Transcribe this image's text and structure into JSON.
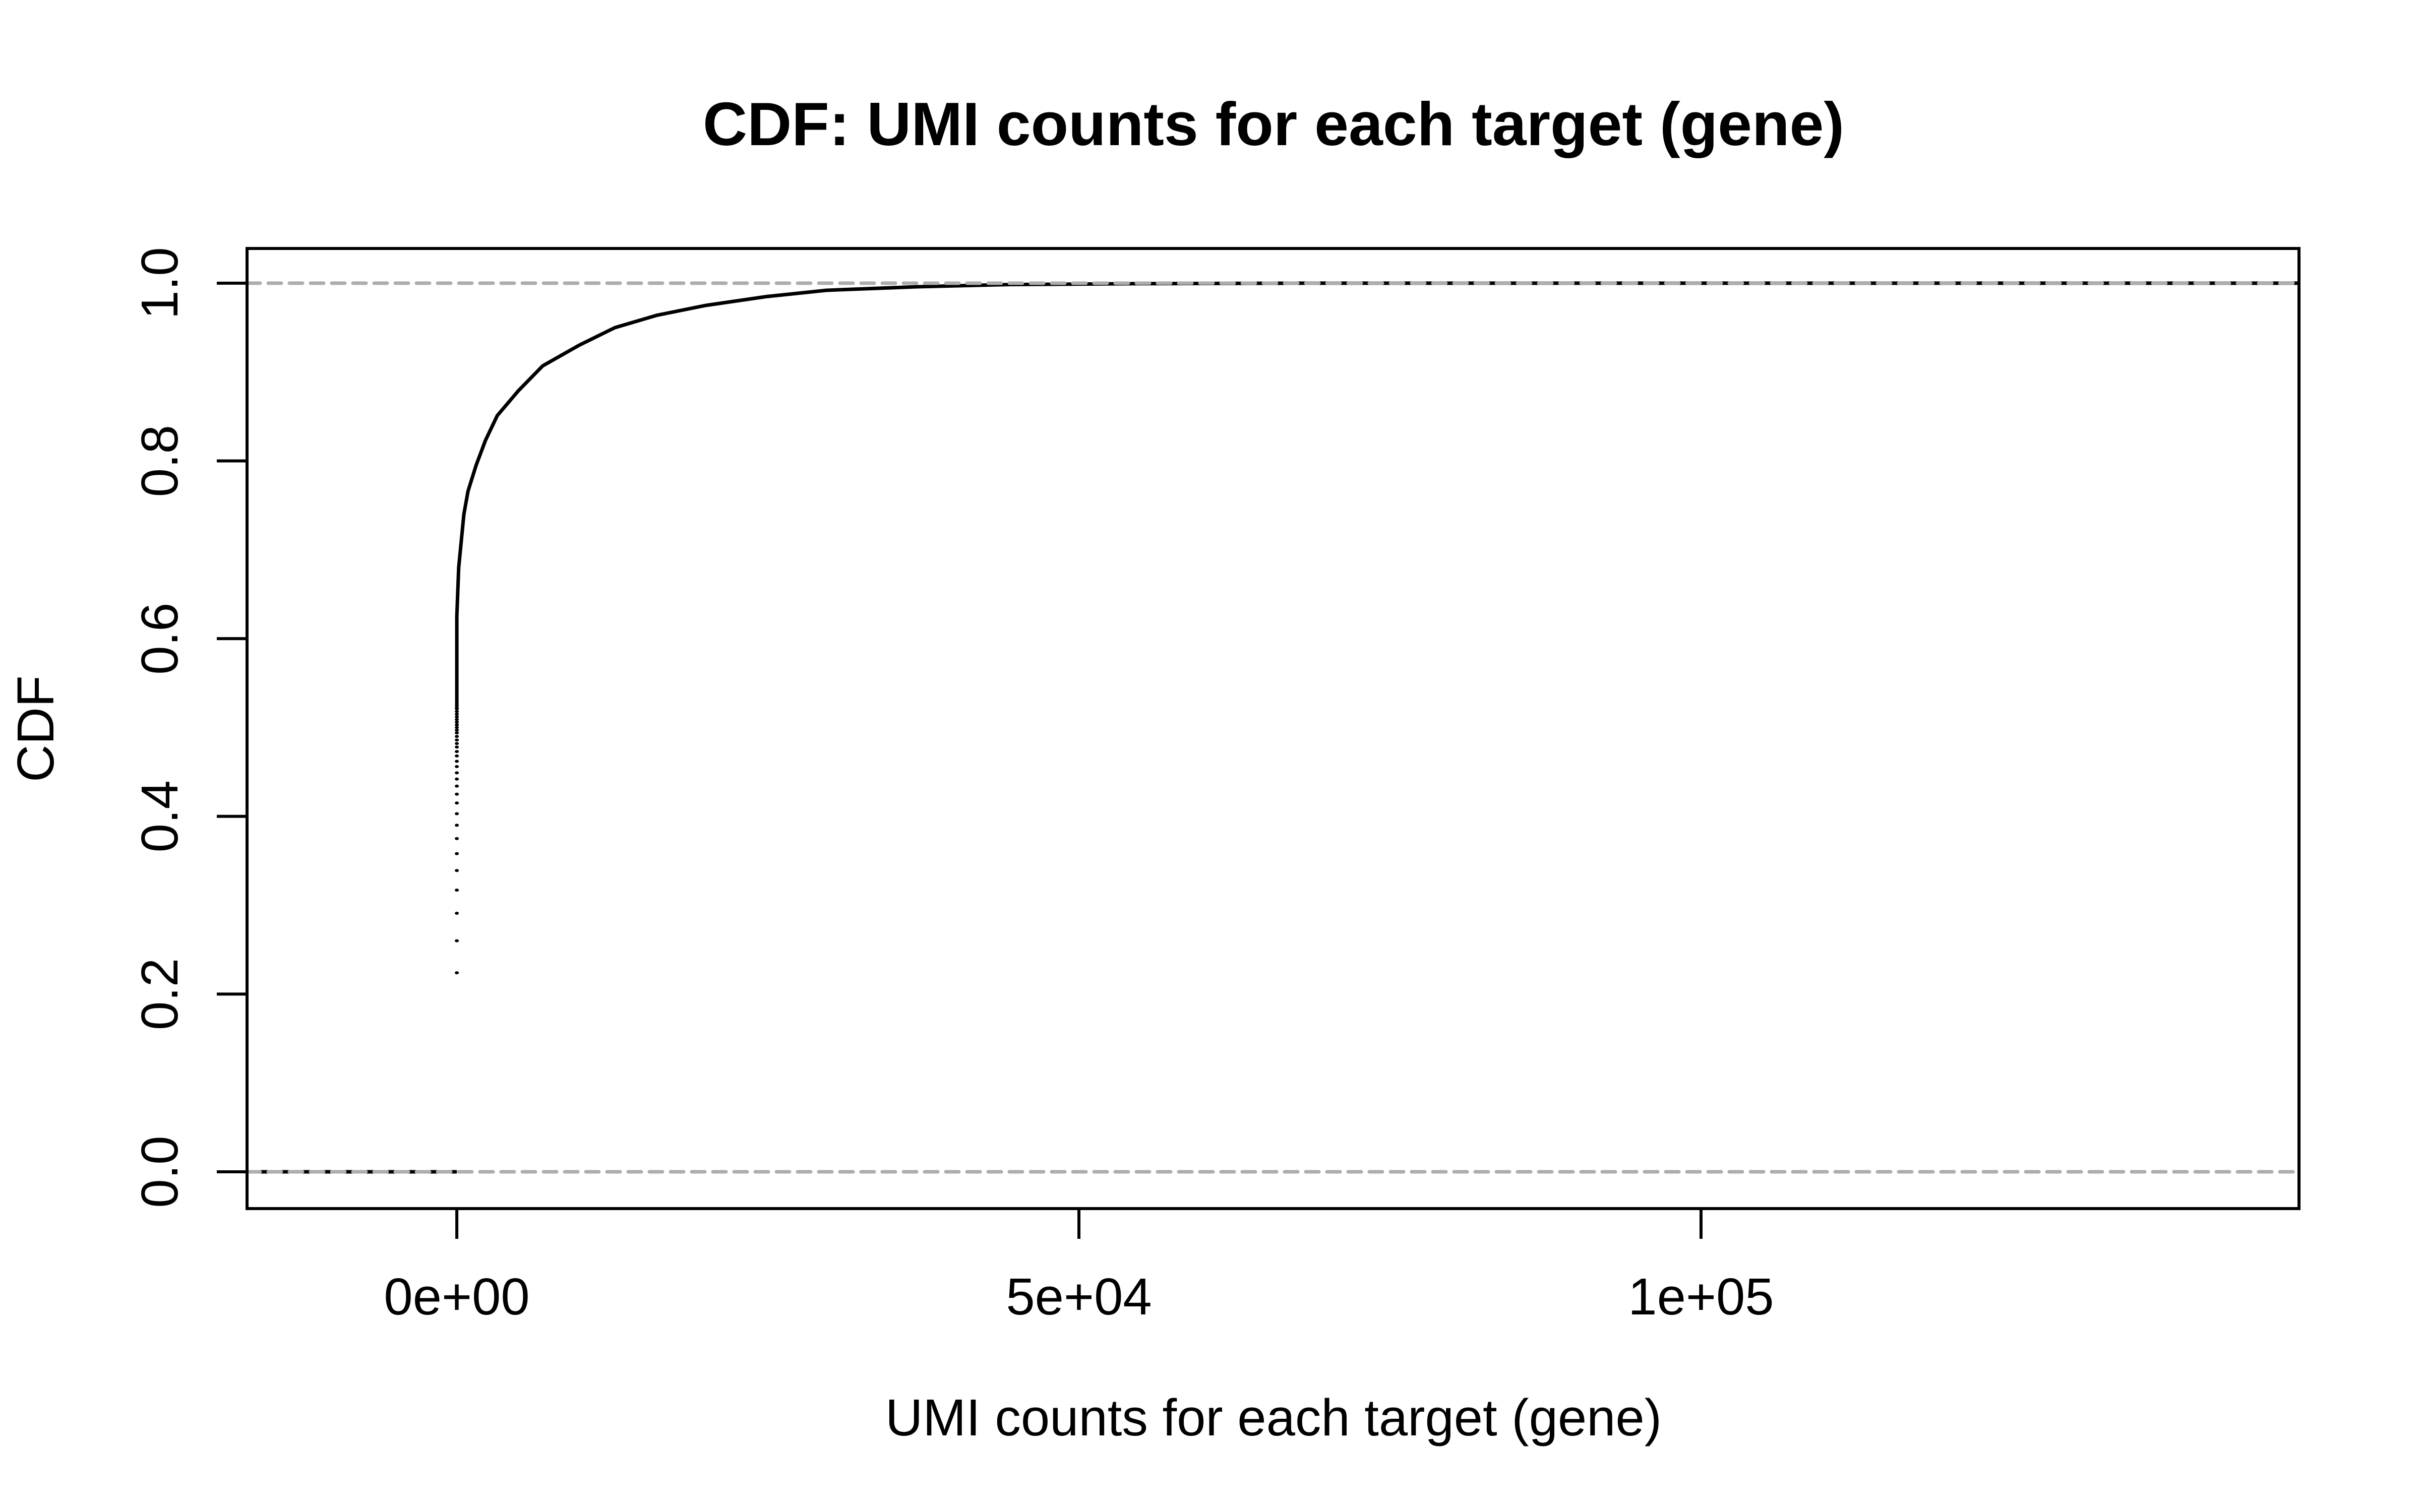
{
  "title": {
    "text": "CDF: UMI counts for each target (gene)"
  },
  "axes": {
    "x": {
      "label": "UMI counts for each target (gene)",
      "ticks": [
        {
          "value": 0,
          "label": "0e+00"
        },
        {
          "value": 50000,
          "label": "5e+04"
        },
        {
          "value": 100000,
          "label": "1e+05"
        }
      ]
    },
    "y": {
      "label": "CDF",
      "ticks": [
        {
          "value": 0.0,
          "label": "0.0"
        },
        {
          "value": 0.2,
          "label": "0.2"
        },
        {
          "value": 0.4,
          "label": "0.4"
        },
        {
          "value": 0.6,
          "label": "0.6"
        },
        {
          "value": 0.8,
          "label": "0.8"
        },
        {
          "value": 1.0,
          "label": "1.0"
        }
      ]
    }
  },
  "colors": {
    "foreground": "#000000",
    "reference_dash": "#adadad",
    "background": "#ffffff"
  },
  "chart_data": {
    "type": "line",
    "title": "CDF: UMI counts for each target (gene)",
    "xlabel": "UMI counts for each target (gene)",
    "ylabel": "CDF",
    "xlim": [
      -16860,
      148060
    ],
    "ylim": [
      -0.0414,
      1.0391
    ],
    "x_tick_values": [
      0,
      50000,
      100000
    ],
    "x_tick_labels": [
      "0e+00",
      "5e+04",
      "1e+05"
    ],
    "y_tick_values": [
      0.0,
      0.2,
      0.4,
      0.6,
      0.8,
      1.0
    ],
    "y_tick_labels": [
      "0.0",
      "0.2",
      "0.4",
      "0.6",
      "0.8",
      "1.0"
    ],
    "grid": false,
    "legend": "none",
    "reference_lines": [
      {
        "y": 0,
        "style": "dashed"
      },
      {
        "y": 1,
        "style": "dashed"
      }
    ],
    "series": [
      {
        "name": "cdf-curve",
        "type": "line",
        "points": [
          [
            0,
            0.52
          ],
          [
            0,
            0.625
          ],
          [
            150,
            0.68
          ],
          [
            570,
            0.74
          ],
          [
            900,
            0.766
          ],
          [
            1550,
            0.795
          ],
          [
            2300,
            0.823
          ],
          [
            3250,
            0.851
          ],
          [
            4950,
            0.879
          ],
          [
            6900,
            0.907
          ],
          [
            9800,
            0.93
          ],
          [
            12700,
            0.95
          ],
          [
            16100,
            0.964
          ],
          [
            20000,
            0.975
          ],
          [
            24900,
            0.985
          ],
          [
            29700,
            0.992
          ],
          [
            37000,
            0.996
          ],
          [
            44300,
            0.9985
          ],
          [
            55000,
            0.9995
          ],
          [
            68000,
            1.0
          ]
        ]
      },
      {
        "name": "zero-count-dot-column",
        "type": "scatter",
        "x": 0,
        "y_values": [
          0.521,
          0.518,
          0.515,
          0.512,
          0.509,
          0.506,
          0.503,
          0.5,
          0.497,
          0.494,
          0.49,
          0.486,
          0.482,
          0.478,
          0.473,
          0.468,
          0.462,
          0.456,
          0.449,
          0.442,
          0.434,
          0.425,
          0.415,
          0.403,
          0.39,
          0.375,
          0.358,
          0.339,
          0.317,
          0.291,
          0.26,
          0.224
        ]
      },
      {
        "name": "baseline-left-segment",
        "type": "line",
        "points": [
          [
            -16860,
            0
          ],
          [
            0,
            0
          ]
        ]
      },
      {
        "name": "top-right-segment",
        "type": "line",
        "points": [
          [
            68000,
            1
          ],
          [
            148060,
            1
          ]
        ]
      }
    ]
  }
}
